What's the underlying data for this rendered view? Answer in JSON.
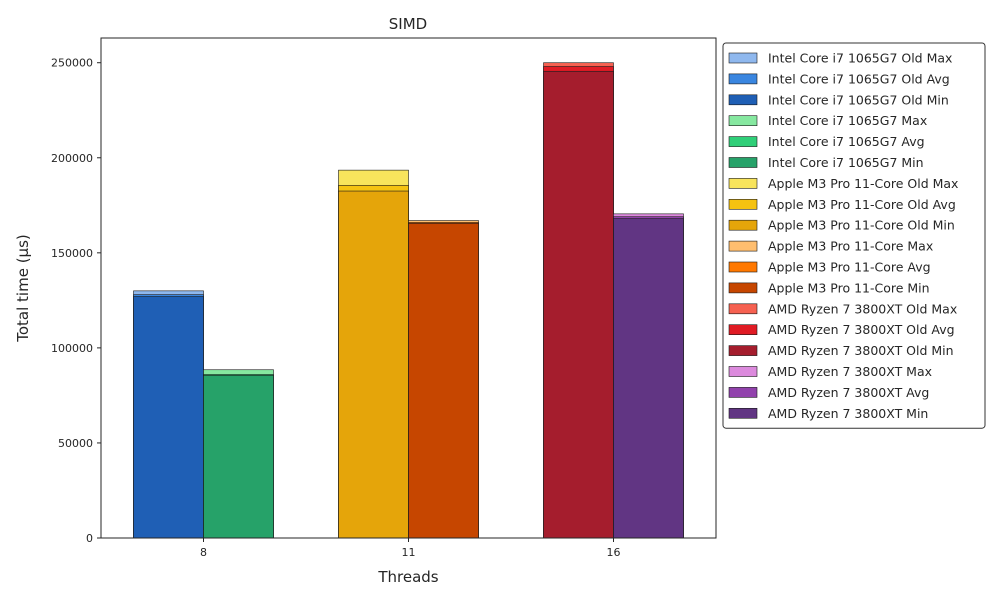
{
  "chart_data": {
    "type": "bar",
    "title": "SIMD",
    "xlabel": "Threads",
    "ylabel": "Total time (µs)",
    "categories": [
      "8",
      "11",
      "16"
    ],
    "ylim": [
      0,
      263000
    ],
    "yticks": [
      0,
      50000,
      100000,
      150000,
      200000,
      250000
    ],
    "ytick_labels": [
      "0",
      "50000",
      "100000",
      "150000",
      "200000",
      "250000"
    ],
    "grid": false,
    "legend_position": "outside-right",
    "groups": [
      {
        "category": "8",
        "bars": [
          {
            "slot": "left",
            "layers": [
              {
                "name": "Intel Core i7 1065G7 Old Max",
                "value": 130000,
                "color": "#8fb8ee"
              },
              {
                "name": "Intel Core i7 1065G7 Old Avg",
                "value": 128000,
                "color": "#3a86e0"
              },
              {
                "name": "Intel Core i7 1065G7 Old Min",
                "value": 127000,
                "color": "#1f5fb5"
              }
            ]
          },
          {
            "slot": "right",
            "layers": [
              {
                "name": "Intel Core i7 1065G7 Max",
                "value": 88500,
                "color": "#86e8a0"
              },
              {
                "name": "Intel Core i7 1065G7 Avg",
                "value": 86000,
                "color": "#2fcf78"
              },
              {
                "name": "Intel Core i7 1065G7 Min",
                "value": 85500,
                "color": "#26a269"
              }
            ]
          }
        ]
      },
      {
        "category": "11",
        "bars": [
          {
            "slot": "left",
            "layers": [
              {
                "name": "Apple M3 Pro 11-Core Old Max",
                "value": 193500,
                "color": "#f8e45c"
              },
              {
                "name": "Apple M3 Pro 11-Core Old Avg",
                "value": 185500,
                "color": "#f5c211"
              },
              {
                "name": "Apple M3 Pro 11-Core Old Min",
                "value": 182500,
                "color": "#e5a50a"
              }
            ]
          },
          {
            "slot": "right",
            "layers": [
              {
                "name": "Apple M3 Pro 11-Core Max",
                "value": 167000,
                "color": "#ffbe6f"
              },
              {
                "name": "Apple M3 Pro 11-Core Avg",
                "value": 166000,
                "color": "#ff7800"
              },
              {
                "name": "Apple M3 Pro 11-Core Min",
                "value": 165500,
                "color": "#c64600"
              }
            ]
          }
        ]
      },
      {
        "category": "16",
        "bars": [
          {
            "slot": "left",
            "layers": [
              {
                "name": "AMD Ryzen 7 3800XT Old Max",
                "value": 250000,
                "color": "#f66151"
              },
              {
                "name": "AMD Ryzen 7 3800XT Old Avg",
                "value": 248000,
                "color": "#e01b24"
              },
              {
                "name": "AMD Ryzen 7 3800XT Old Min",
                "value": 245500,
                "color": "#a51d2d"
              }
            ]
          },
          {
            "slot": "right",
            "layers": [
              {
                "name": "AMD Ryzen 7 3800XT Max",
                "value": 170500,
                "color": "#dc8add"
              },
              {
                "name": "AMD Ryzen 7 3800XT Avg",
                "value": 169000,
                "color": "#9141ac"
              },
              {
                "name": "AMD Ryzen 7 3800XT Min",
                "value": 168000,
                "color": "#613583"
              }
            ]
          }
        ]
      }
    ],
    "legend": [
      {
        "name": "Intel Core i7 1065G7 Old Max",
        "color": "#8fb8ee"
      },
      {
        "name": "Intel Core i7 1065G7 Old Avg",
        "color": "#3a86e0"
      },
      {
        "name": "Intel Core i7 1065G7 Old Min",
        "color": "#1f5fb5"
      },
      {
        "name": "Intel Core i7 1065G7 Max",
        "color": "#86e8a0"
      },
      {
        "name": "Intel Core i7 1065G7 Avg",
        "color": "#2fcf78"
      },
      {
        "name": "Intel Core i7 1065G7 Min",
        "color": "#26a269"
      },
      {
        "name": "Apple M3 Pro 11-Core Old Max",
        "color": "#f8e45c"
      },
      {
        "name": "Apple M3 Pro 11-Core Old Avg",
        "color": "#f5c211"
      },
      {
        "name": "Apple M3 Pro 11-Core Old Min",
        "color": "#e5a50a"
      },
      {
        "name": "Apple M3 Pro 11-Core Max",
        "color": "#ffbe6f"
      },
      {
        "name": "Apple M3 Pro 11-Core Avg",
        "color": "#ff7800"
      },
      {
        "name": "Apple M3 Pro 11-Core Min",
        "color": "#c64600"
      },
      {
        "name": "AMD Ryzen 7 3800XT Old Max",
        "color": "#f66151"
      },
      {
        "name": "AMD Ryzen 7 3800XT Old Avg",
        "color": "#e01b24"
      },
      {
        "name": "AMD Ryzen 7 3800XT Old Min",
        "color": "#a51d2d"
      },
      {
        "name": "AMD Ryzen 7 3800XT Max",
        "color": "#dc8add"
      },
      {
        "name": "AMD Ryzen 7 3800XT Avg",
        "color": "#9141ac"
      },
      {
        "name": "AMD Ryzen 7 3800XT Min",
        "color": "#613583"
      }
    ]
  }
}
